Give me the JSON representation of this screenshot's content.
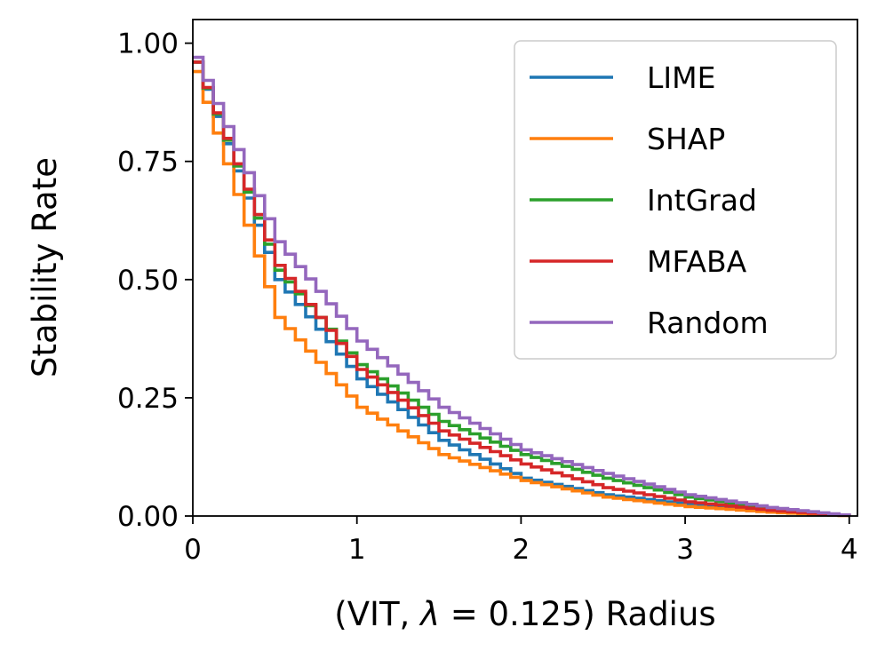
{
  "chart_data": {
    "type": "line",
    "step": true,
    "xlabel_prefix": "(VIT, ",
    "xlabel_lambda": "λ",
    "xlabel_value": " = 0.125) Radius",
    "ylabel": "Stability Rate",
    "xlim": [
      0,
      4.05
    ],
    "ylim": [
      0,
      1.05
    ],
    "xticks": [
      0,
      1,
      2,
      3,
      4
    ],
    "xtick_labels": [
      "0",
      "1",
      "2",
      "3",
      "4"
    ],
    "yticks": [
      0,
      0.25,
      0.5,
      0.75,
      1.0
    ],
    "ytick_labels": [
      "0.00",
      "0.25",
      "0.50",
      "0.75",
      "1.00"
    ],
    "grid": false,
    "legend_position": "top-right",
    "decay_anchor_x": [
      0,
      0.5,
      1.0,
      1.5,
      2.0,
      2.5,
      3.0,
      3.5,
      4.0
    ],
    "series": [
      {
        "name": "LIME",
        "color": "#1f77b4",
        "y": [
          0.96,
          0.5,
          0.29,
          0.16,
          0.08,
          0.045,
          0.025,
          0.01,
          0.0
        ]
      },
      {
        "name": "SHAP",
        "color": "#ff7f0e",
        "y": [
          0.94,
          0.42,
          0.23,
          0.13,
          0.075,
          0.04,
          0.02,
          0.008,
          0.0
        ]
      },
      {
        "name": "IntGrad",
        "color": "#2ca02c",
        "y": [
          0.96,
          0.52,
          0.32,
          0.2,
          0.13,
          0.08,
          0.04,
          0.015,
          0.0
        ]
      },
      {
        "name": "MFABA",
        "color": "#d62728",
        "y": [
          0.96,
          0.53,
          0.31,
          0.18,
          0.11,
          0.06,
          0.03,
          0.012,
          0.0
        ]
      },
      {
        "name": "Random",
        "color": "#9467bd",
        "y": [
          0.97,
          0.58,
          0.37,
          0.23,
          0.14,
          0.09,
          0.045,
          0.018,
          0.0
        ]
      }
    ]
  }
}
